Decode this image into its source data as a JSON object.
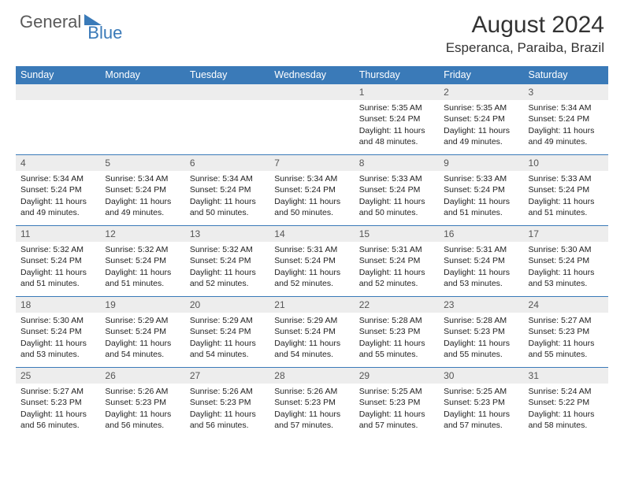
{
  "logo": {
    "general": "General",
    "blue": "Blue"
  },
  "title": "August 2024",
  "location": "Esperanca, Paraiba, Brazil",
  "colors": {
    "header_bg": "#3a7ab8",
    "header_text": "#ffffff",
    "daynum_bg": "#ededed",
    "border": "#3a7ab8",
    "text": "#222222",
    "logo_gray": "#5a5a5a",
    "logo_blue": "#3a7ab8"
  },
  "daynames": [
    "Sunday",
    "Monday",
    "Tuesday",
    "Wednesday",
    "Thursday",
    "Friday",
    "Saturday"
  ],
  "weeks": [
    [
      null,
      null,
      null,
      null,
      {
        "n": "1",
        "sr": "5:35 AM",
        "ss": "5:24 PM",
        "dl": "11 hours and 48 minutes."
      },
      {
        "n": "2",
        "sr": "5:35 AM",
        "ss": "5:24 PM",
        "dl": "11 hours and 49 minutes."
      },
      {
        "n": "3",
        "sr": "5:34 AM",
        "ss": "5:24 PM",
        "dl": "11 hours and 49 minutes."
      }
    ],
    [
      {
        "n": "4",
        "sr": "5:34 AM",
        "ss": "5:24 PM",
        "dl": "11 hours and 49 minutes."
      },
      {
        "n": "5",
        "sr": "5:34 AM",
        "ss": "5:24 PM",
        "dl": "11 hours and 49 minutes."
      },
      {
        "n": "6",
        "sr": "5:34 AM",
        "ss": "5:24 PM",
        "dl": "11 hours and 50 minutes."
      },
      {
        "n": "7",
        "sr": "5:34 AM",
        "ss": "5:24 PM",
        "dl": "11 hours and 50 minutes."
      },
      {
        "n": "8",
        "sr": "5:33 AM",
        "ss": "5:24 PM",
        "dl": "11 hours and 50 minutes."
      },
      {
        "n": "9",
        "sr": "5:33 AM",
        "ss": "5:24 PM",
        "dl": "11 hours and 51 minutes."
      },
      {
        "n": "10",
        "sr": "5:33 AM",
        "ss": "5:24 PM",
        "dl": "11 hours and 51 minutes."
      }
    ],
    [
      {
        "n": "11",
        "sr": "5:32 AM",
        "ss": "5:24 PM",
        "dl": "11 hours and 51 minutes."
      },
      {
        "n": "12",
        "sr": "5:32 AM",
        "ss": "5:24 PM",
        "dl": "11 hours and 51 minutes."
      },
      {
        "n": "13",
        "sr": "5:32 AM",
        "ss": "5:24 PM",
        "dl": "11 hours and 52 minutes."
      },
      {
        "n": "14",
        "sr": "5:31 AM",
        "ss": "5:24 PM",
        "dl": "11 hours and 52 minutes."
      },
      {
        "n": "15",
        "sr": "5:31 AM",
        "ss": "5:24 PM",
        "dl": "11 hours and 52 minutes."
      },
      {
        "n": "16",
        "sr": "5:31 AM",
        "ss": "5:24 PM",
        "dl": "11 hours and 53 minutes."
      },
      {
        "n": "17",
        "sr": "5:30 AM",
        "ss": "5:24 PM",
        "dl": "11 hours and 53 minutes."
      }
    ],
    [
      {
        "n": "18",
        "sr": "5:30 AM",
        "ss": "5:24 PM",
        "dl": "11 hours and 53 minutes."
      },
      {
        "n": "19",
        "sr": "5:29 AM",
        "ss": "5:24 PM",
        "dl": "11 hours and 54 minutes."
      },
      {
        "n": "20",
        "sr": "5:29 AM",
        "ss": "5:24 PM",
        "dl": "11 hours and 54 minutes."
      },
      {
        "n": "21",
        "sr": "5:29 AM",
        "ss": "5:24 PM",
        "dl": "11 hours and 54 minutes."
      },
      {
        "n": "22",
        "sr": "5:28 AM",
        "ss": "5:23 PM",
        "dl": "11 hours and 55 minutes."
      },
      {
        "n": "23",
        "sr": "5:28 AM",
        "ss": "5:23 PM",
        "dl": "11 hours and 55 minutes."
      },
      {
        "n": "24",
        "sr": "5:27 AM",
        "ss": "5:23 PM",
        "dl": "11 hours and 55 minutes."
      }
    ],
    [
      {
        "n": "25",
        "sr": "5:27 AM",
        "ss": "5:23 PM",
        "dl": "11 hours and 56 minutes."
      },
      {
        "n": "26",
        "sr": "5:26 AM",
        "ss": "5:23 PM",
        "dl": "11 hours and 56 minutes."
      },
      {
        "n": "27",
        "sr": "5:26 AM",
        "ss": "5:23 PM",
        "dl": "11 hours and 56 minutes."
      },
      {
        "n": "28",
        "sr": "5:26 AM",
        "ss": "5:23 PM",
        "dl": "11 hours and 57 minutes."
      },
      {
        "n": "29",
        "sr": "5:25 AM",
        "ss": "5:23 PM",
        "dl": "11 hours and 57 minutes."
      },
      {
        "n": "30",
        "sr": "5:25 AM",
        "ss": "5:23 PM",
        "dl": "11 hours and 57 minutes."
      },
      {
        "n": "31",
        "sr": "5:24 AM",
        "ss": "5:22 PM",
        "dl": "11 hours and 58 minutes."
      }
    ]
  ],
  "labels": {
    "sunrise": "Sunrise:",
    "sunset": "Sunset:",
    "daylight": "Daylight:"
  }
}
